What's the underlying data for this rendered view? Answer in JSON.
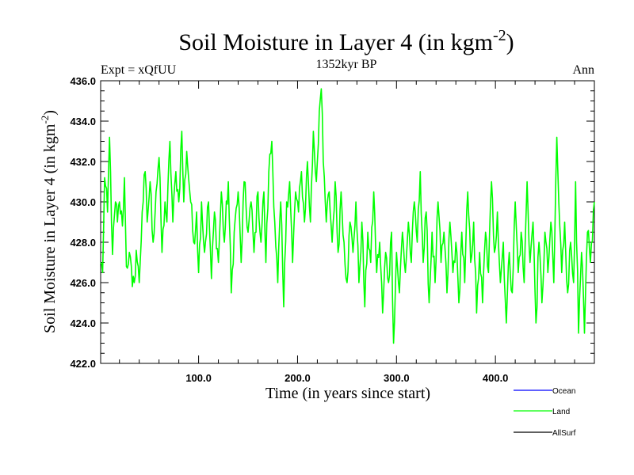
{
  "chart_data": {
    "type": "line",
    "title": "Soil Moisture in Layer 4 (in kgm",
    "title_sup": "-2",
    "title_close": ")",
    "left_label": "Expt = xQfUU",
    "center_label": "1352kyr BP",
    "right_label": "Ann",
    "xlabel": "Time (in years since start)",
    "ylabel": "Soil Moisture in Layer 4 (in kgm",
    "ylabel_sup": "-2",
    "ylabel_close": ")",
    "xlim": [
      1,
      500
    ],
    "ylim": [
      422,
      436
    ],
    "xticks": [
      100,
      200,
      300,
      400
    ],
    "xtick_labels": [
      "100.0",
      "200.0",
      "300.0",
      "400.0"
    ],
    "yticks": [
      422,
      424,
      426,
      428,
      430,
      432,
      434,
      436
    ],
    "ytick_labels": [
      "422.0",
      "424.0",
      "426.0",
      "428.0",
      "430.0",
      "432.0",
      "434.0",
      "436.0"
    ],
    "series": [
      {
        "name": "Ocean",
        "color": "#0000ff",
        "values": []
      },
      {
        "name": "Land",
        "color": "#00ff00",
        "anchors": [
          [
            1,
            427.0
          ],
          [
            3,
            426.5
          ],
          [
            5,
            431.2
          ],
          [
            8,
            429.5
          ],
          [
            10,
            433.2
          ],
          [
            13,
            427.4
          ],
          [
            16,
            430.0
          ],
          [
            18,
            429.0
          ],
          [
            20,
            430.0
          ],
          [
            23,
            428.8
          ],
          [
            25,
            431.2
          ],
          [
            27,
            426.8
          ],
          [
            30,
            427.5
          ],
          [
            33,
            425.8
          ],
          [
            35,
            426.0
          ],
          [
            37,
            427.6
          ],
          [
            40,
            426.0
          ],
          [
            43,
            429.5
          ],
          [
            46,
            431.5
          ],
          [
            48,
            429.0
          ],
          [
            51,
            431.0
          ],
          [
            54,
            428.0
          ],
          [
            57,
            430.5
          ],
          [
            60,
            432.2
          ],
          [
            63,
            427.5
          ],
          [
            66,
            430.0
          ],
          [
            68,
            429.0
          ],
          [
            71,
            433.0
          ],
          [
            74,
            429.0
          ],
          [
            77,
            431.5
          ],
          [
            80,
            430.0
          ],
          [
            83,
            433.5
          ],
          [
            85,
            430.0
          ],
          [
            88,
            432.5
          ],
          [
            92,
            430.0
          ],
          [
            95,
            428.0
          ],
          [
            98,
            429.5
          ],
          [
            100,
            426.5
          ],
          [
            103,
            430.0
          ],
          [
            106,
            427.5
          ],
          [
            110,
            430.0
          ],
          [
            113,
            426.2
          ],
          [
            116,
            429.5
          ],
          [
            120,
            427.0
          ],
          [
            123,
            430.5
          ],
          [
            126,
            428.0
          ],
          [
            130,
            431.0
          ],
          [
            133,
            425.5
          ],
          [
            136,
            428.5
          ],
          [
            140,
            430.5
          ],
          [
            143,
            427.0
          ],
          [
            146,
            431.0
          ],
          [
            150,
            428.5
          ],
          [
            153,
            430.0
          ],
          [
            156,
            427.5
          ],
          [
            160,
            430.5
          ],
          [
            163,
            428.0
          ],
          [
            166,
            430.5
          ],
          [
            168,
            427.0
          ],
          [
            171,
            431.5
          ],
          [
            174,
            433.0
          ],
          [
            177,
            429.0
          ],
          [
            180,
            426.0
          ],
          [
            183,
            430.0
          ],
          [
            186,
            424.8
          ],
          [
            189,
            430.0
          ],
          [
            192,
            431.0
          ],
          [
            195,
            427.0
          ],
          [
            198,
            430.5
          ],
          [
            201,
            429.5
          ],
          [
            204,
            431.5
          ],
          [
            207,
            429.0
          ],
          [
            210,
            432.0
          ],
          [
            213,
            429.0
          ],
          [
            216,
            433.5
          ],
          [
            219,
            431.0
          ],
          [
            222,
            434.5
          ],
          [
            224,
            435.6
          ],
          [
            226,
            432.0
          ],
          [
            229,
            429.0
          ],
          [
            232,
            430.5
          ],
          [
            235,
            428.0
          ],
          [
            238,
            431.0
          ],
          [
            241,
            427.5
          ],
          [
            244,
            430.5
          ],
          [
            247,
            428.0
          ],
          [
            250,
            426.0
          ],
          [
            253,
            429.0
          ],
          [
            256,
            427.5
          ],
          [
            259,
            430.0
          ],
          [
            262,
            426.0
          ],
          [
            265,
            429.0
          ],
          [
            268,
            424.8
          ],
          [
            271,
            428.5
          ],
          [
            274,
            427.0
          ],
          [
            277,
            430.5
          ],
          [
            280,
            426.5
          ],
          [
            283,
            428.0
          ],
          [
            286,
            424.5
          ],
          [
            289,
            427.5
          ],
          [
            292,
            426.0
          ],
          [
            295,
            428.5
          ],
          [
            297,
            423.0
          ],
          [
            300,
            427.5
          ],
          [
            303,
            425.5
          ],
          [
            306,
            428.5
          ],
          [
            309,
            426.5
          ],
          [
            312,
            429.0
          ],
          [
            315,
            427.0
          ],
          [
            318,
            430.0
          ],
          [
            321,
            428.0
          ],
          [
            324,
            431.5
          ],
          [
            327,
            427.0
          ],
          [
            330,
            429.5
          ],
          [
            333,
            425.0
          ],
          [
            336,
            428.5
          ],
          [
            339,
            426.0
          ],
          [
            342,
            430.0
          ],
          [
            345,
            427.0
          ],
          [
            348,
            428.5
          ],
          [
            351,
            425.5
          ],
          [
            354,
            429.0
          ],
          [
            357,
            426.5
          ],
          [
            360,
            428.0
          ],
          [
            363,
            425.0
          ],
          [
            366,
            428.5
          ],
          [
            369,
            426.0
          ],
          [
            372,
            430.5
          ],
          [
            375,
            427.0
          ],
          [
            378,
            429.0
          ],
          [
            381,
            424.5
          ],
          [
            384,
            427.5
          ],
          [
            387,
            425.0
          ],
          [
            390,
            428.5
          ],
          [
            393,
            426.5
          ],
          [
            396,
            431.0
          ],
          [
            399,
            427.5
          ],
          [
            402,
            429.5
          ],
          [
            405,
            426.0
          ],
          [
            408,
            428.0
          ],
          [
            411,
            424.0
          ],
          [
            414,
            427.5
          ],
          [
            417,
            425.5
          ],
          [
            420,
            430.0
          ],
          [
            423,
            426.5
          ],
          [
            426,
            428.5
          ],
          [
            429,
            426.0
          ],
          [
            432,
            431.0
          ],
          [
            435,
            427.0
          ],
          [
            438,
            429.0
          ],
          [
            441,
            424.0
          ],
          [
            444,
            428.0
          ],
          [
            447,
            425.0
          ],
          [
            450,
            428.5
          ],
          [
            453,
            426.5
          ],
          [
            456,
            429.0
          ],
          [
            459,
            426.0
          ],
          [
            462,
            433.2
          ],
          [
            464,
            430.0
          ],
          [
            467,
            426.5
          ],
          [
            470,
            429.0
          ],
          [
            473,
            425.5
          ],
          [
            476,
            428.0
          ],
          [
            479,
            426.0
          ],
          [
            481,
            431.0
          ],
          [
            484,
            423.5
          ],
          [
            487,
            427.5
          ],
          [
            490,
            423.5
          ],
          [
            493,
            428.5
          ],
          [
            496,
            427.0
          ],
          [
            500,
            430.0
          ]
        ]
      },
      {
        "name": "AllSurf",
        "color": "#000000",
        "values": []
      }
    ]
  }
}
